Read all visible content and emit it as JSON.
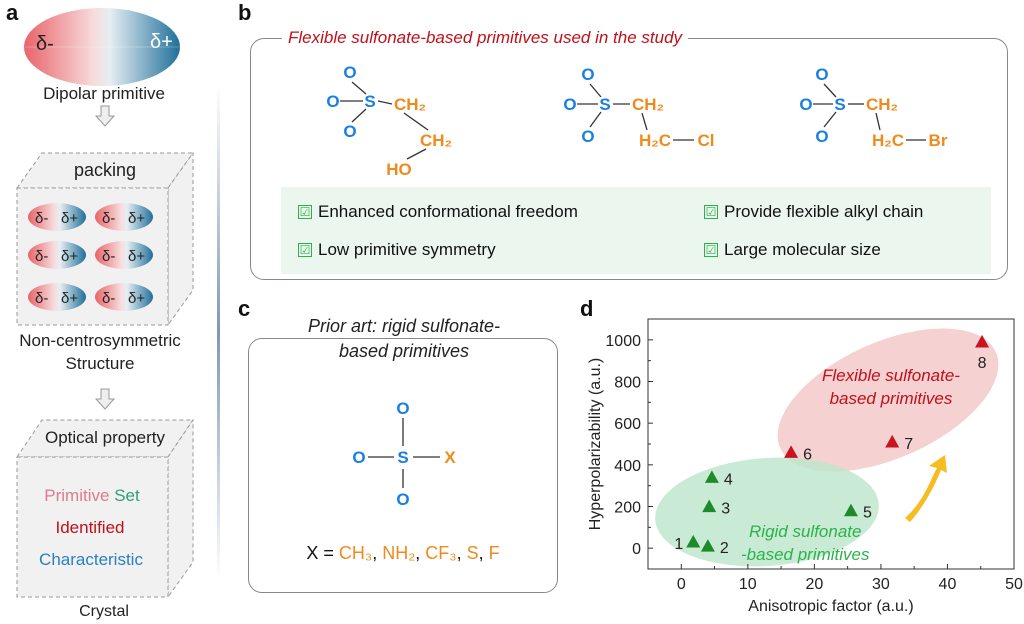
{
  "panel_a": {
    "label": "a",
    "dipole_neg": "δ-",
    "dipole_pos": "δ+",
    "dipolar_caption": "Dipolar primitive",
    "packing_label": "packing",
    "structure_caption_1": "Non-centrosymmetric",
    "structure_caption_2": "Structure",
    "optical_label": "Optical property",
    "word_primitive": "Primitive",
    "word_set": "Set",
    "word_identified": "Identified",
    "word_characteristic": "Characteristic",
    "crystal_caption": "Crystal",
    "colors": {
      "negative": "#e8646a",
      "positive": "#1f6f9a",
      "primitive": "#e07a90",
      "set": "#2f9e7e",
      "identified": "#c0101a",
      "characteristic": "#2a7fc0"
    }
  },
  "panel_b": {
    "label": "b",
    "title": "Flexible sulfonate-based primitives used in the study",
    "molecules": [
      {
        "O1": "O",
        "O2": "O",
        "S": "S",
        "O3": "O",
        "C1": "CH₂",
        "C2": "CH₂",
        "end": "HO"
      },
      {
        "O1": "O",
        "O2": "O",
        "S": "S",
        "O3": "O",
        "C1": "CH₂",
        "C2": "H₂C",
        "end": "Cl"
      },
      {
        "O1": "O",
        "O2": "O",
        "S": "S",
        "O3": "O",
        "C1": "CH₂",
        "C2": "H₂C",
        "end": "Br"
      }
    ],
    "features": [
      "Enhanced conformational freedom",
      "Provide flexible alkyl chain",
      "Low primitive symmetry",
      "Large molecular size"
    ],
    "check_icon": "☑",
    "colors": {
      "title": "#c0101a",
      "atom_blue": "#1a7fe0",
      "atom_orange": "#f08a1c",
      "feature_bg": "#eaf6ee"
    }
  },
  "panel_c": {
    "label": "c",
    "title_1": "Prior art: rigid sulfonate-",
    "title_2": "based primitives",
    "atoms": {
      "O_top": "O",
      "O_left": "O",
      "S": "S",
      "X": "X",
      "O_bottom": "O"
    },
    "x_prefix": "X = ",
    "x_options": [
      "CH₃",
      "NH₂",
      "CF₃",
      "S",
      "F"
    ]
  },
  "panel_d": {
    "label": "d",
    "region_flexible_1": "Flexible sulfonate-",
    "region_flexible_2": "based primitives",
    "region_rigid_1": "Rigid sulfonate",
    "region_rigid_2": "-based primitives"
  },
  "chart_data": {
    "type": "scatter",
    "xlabel": "Anisotropic factor (a.u.)",
    "ylabel": "Hyperpolarizability (a.u.)",
    "xlim": [
      -5,
      50
    ],
    "ylim": [
      -100,
      1100
    ],
    "xticks": [
      0,
      10,
      20,
      30,
      40,
      50
    ],
    "yticks": [
      0,
      200,
      400,
      600,
      800,
      1000
    ],
    "grid": false,
    "marker": "triangle",
    "points": [
      {
        "label": "1",
        "x": 1.8,
        "y": 30,
        "group": "rigid"
      },
      {
        "label": "2",
        "x": 4.0,
        "y": 10,
        "group": "rigid"
      },
      {
        "label": "3",
        "x": 4.2,
        "y": 200,
        "group": "rigid"
      },
      {
        "label": "4",
        "x": 4.6,
        "y": 340,
        "group": "rigid"
      },
      {
        "label": "5",
        "x": 25.5,
        "y": 180,
        "group": "rigid"
      },
      {
        "label": "6",
        "x": 16.5,
        "y": 460,
        "group": "flexible"
      },
      {
        "label": "7",
        "x": 31.7,
        "y": 510,
        "group": "flexible"
      },
      {
        "label": "8",
        "x": 45.2,
        "y": 990,
        "group": "flexible"
      }
    ],
    "colors": {
      "rigid": "#1e8a2a",
      "flexible": "#c8141e",
      "rigid_region": "#bfe6cc",
      "flexible_region": "#f3c9c9",
      "arrow": "#f5b50a"
    }
  }
}
